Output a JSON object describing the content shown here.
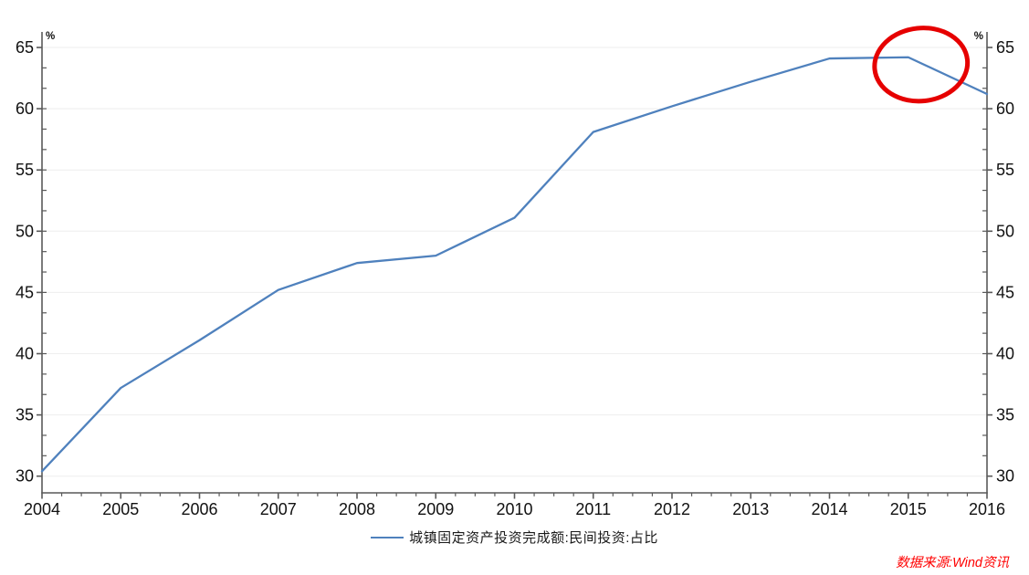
{
  "chart_data": {
    "type": "line",
    "title": "",
    "x": [
      2004,
      2005,
      2006,
      2007,
      2008,
      2009,
      2010,
      2011,
      2012,
      2013,
      2014,
      2015,
      2016
    ],
    "series": [
      {
        "name": "城镇固定资产投资完成额:民间投资:占比",
        "color": "#4f81bd",
        "values": [
          30.4,
          37.2,
          41.1,
          45.2,
          47.4,
          48.0,
          51.1,
          58.1,
          60.2,
          62.2,
          64.1,
          64.2,
          61.2
        ]
      }
    ],
    "y_unit_left": "%",
    "y_unit_right": "%",
    "ylim": [
      30,
      65
    ],
    "yticks": [
      30,
      35,
      40,
      45,
      50,
      55,
      60,
      65
    ],
    "y_minor_divisions": 3,
    "x_minor_divisions": 4,
    "grid": "horizontal-major",
    "legend_position": "bottom-center",
    "axis_color": "#595959",
    "gridline_color": "#eeeeee",
    "tick_label_color": "#111111"
  },
  "annotation": {
    "shape": "circle",
    "color": "#e60000",
    "highlighted_x": 2015,
    "highlighted_value": 64.2
  },
  "legend": {
    "label": "城镇固定资产投资完成额:民间投资:占比"
  },
  "footer": {
    "source": "数据来源:Wind资讯",
    "color": "#ff0000"
  }
}
